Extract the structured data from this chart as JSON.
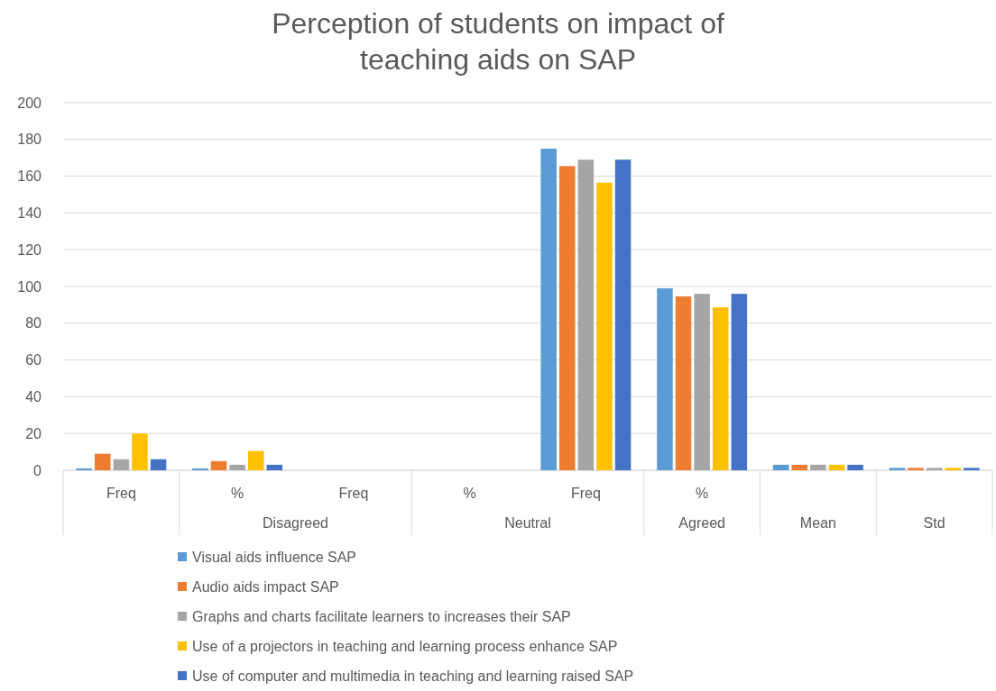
{
  "chart_data": {
    "type": "bar",
    "title": "Perception of students on impact of teaching aids on SAP",
    "categories": [
      "Freq",
      "%",
      "Freq",
      "%",
      "Freq",
      "%",
      null,
      null
    ],
    "annotations": [
      "Disagreed",
      "Neutral",
      "Agreed",
      "Mean",
      "Std"
    ],
    "series": [
      {
        "name": "Visual aids  influence SAP",
        "color": "#5b9bd5",
        "values": [
          1,
          1,
          null,
          null,
          175,
          99,
          3,
          1.3
        ]
      },
      {
        "name": "Audio aids impact SAP",
        "color": "#ed7d31",
        "values": [
          9,
          5,
          null,
          null,
          165.5,
          94.6,
          3,
          1.3
        ]
      },
      {
        "name": "Graphs and charts facilitate learners to increases their SAP",
        "color": "#a5a5a5",
        "values": [
          6,
          3,
          null,
          null,
          169,
          96,
          3,
          1.3
        ]
      },
      {
        "name": "Use of a projectors in teaching and learning process  enhance SAP",
        "color": "#ffc000",
        "values": [
          20,
          10.5,
          null,
          null,
          156.5,
          88.7,
          3,
          1.3
        ]
      },
      {
        "name": "Use of  computer and multimedia in  teaching and learning raised SAP",
        "color": "#4472c4",
        "values": [
          6,
          3,
          null,
          null,
          169,
          96,
          3,
          1.3
        ]
      }
    ],
    "ylim": [
      0,
      200
    ],
    "yticks": [
      0,
      20,
      40,
      60,
      80,
      100,
      120,
      140,
      160,
      180,
      200
    ],
    "grid": "y",
    "legend": "bottom"
  }
}
